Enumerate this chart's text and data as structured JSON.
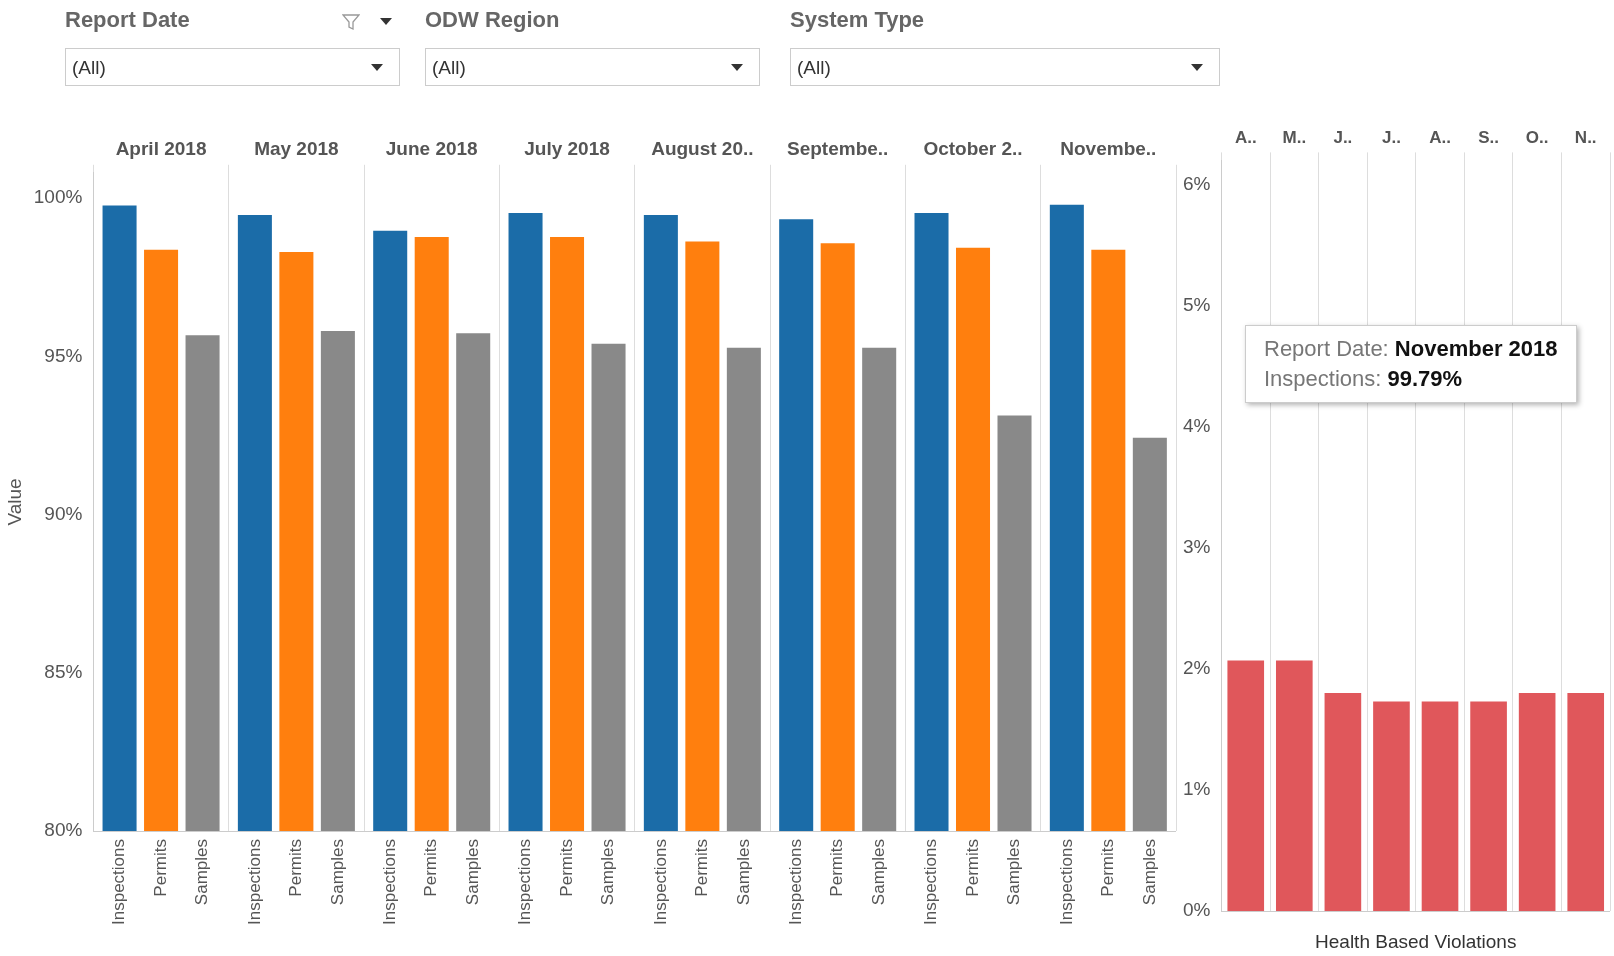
{
  "chart_data": [
    {
      "type": "bar",
      "annotations": [
        "Report Date",
        "(All)",
        "ODW Region",
        "(All)",
        "System Type",
        "(All)",
        "Report Date: November 2018\nInspections: 99.79%"
      ],
      "ylabel": "Value",
      "categories": [
        "April 2018",
        "May 2018",
        "June 2018",
        "July 2018",
        "August 20..",
        "Septembe..",
        "October 2..",
        "Novembe.."
      ],
      "series": [
        {
          "name": "Inspections",
          "color": "#1b6ca8",
          "values": [
            99.77,
            99.47,
            98.97,
            99.53,
            99.47,
            99.33,
            99.53,
            99.79
          ]
        },
        {
          "name": "Permits",
          "color": "#ff7f0e",
          "values": [
            98.37,
            98.3,
            98.77,
            98.77,
            98.63,
            98.57,
            98.43,
            98.37
          ]
        },
        {
          "name": "Samples",
          "color": "#898989",
          "values": [
            95.67,
            95.8,
            95.73,
            95.4,
            95.27,
            95.27,
            93.13,
            92.43
          ]
        }
      ],
      "ylim": [
        80,
        100.8
      ],
      "yticks": [
        {
          "value": 80,
          "label": "80%"
        },
        {
          "value": 85,
          "label": "85%"
        },
        {
          "value": 90,
          "label": "90%"
        },
        {
          "value": 95,
          "label": "95%"
        },
        {
          "value": 100,
          "label": "100%"
        }
      ],
      "grid": "x",
      "legend": false
    },
    {
      "type": "bar",
      "xlabel": "Health Based Violations",
      "categories": [
        "A..",
        "M..",
        "J..",
        "J..",
        "A..",
        "S..",
        "O..",
        "N.."
      ],
      "values": [
        2.07,
        2.07,
        1.8,
        1.73,
        1.73,
        1.73,
        1.8,
        1.8
      ],
      "color": "#e0575b",
      "ylim": [
        0,
        6.2
      ],
      "yticks": [
        {
          "value": 0,
          "label": "0%"
        },
        {
          "value": 1,
          "label": "1%"
        },
        {
          "value": 2,
          "label": "2%"
        },
        {
          "value": 3,
          "label": "3%"
        },
        {
          "value": 4,
          "label": "4%"
        },
        {
          "value": 5,
          "label": "5%"
        },
        {
          "value": 6,
          "label": "6%"
        }
      ],
      "grid": "x",
      "legend": false
    }
  ]
}
